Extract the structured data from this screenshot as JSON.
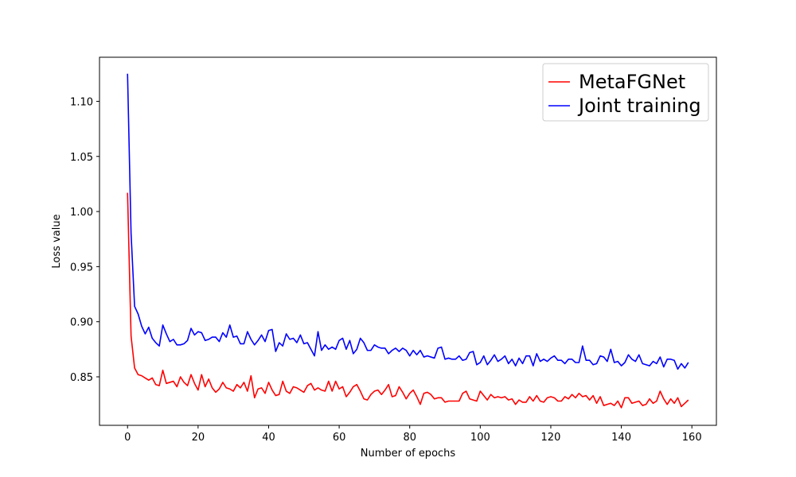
{
  "chart_data": {
    "type": "line",
    "x_label": "Number of epochs",
    "y_label": "Loss value",
    "x": [
      0,
      1,
      2,
      3,
      4,
      5,
      6,
      7,
      8,
      9,
      10,
      11,
      12,
      13,
      14,
      15,
      16,
      17,
      18,
      19,
      20,
      21,
      22,
      23,
      24,
      25,
      26,
      27,
      28,
      29,
      30,
      31,
      32,
      33,
      34,
      35,
      36,
      37,
      38,
      39,
      40,
      41,
      42,
      43,
      44,
      45,
      46,
      47,
      48,
      49,
      50,
      51,
      52,
      53,
      54,
      55,
      56,
      57,
      58,
      59,
      60,
      61,
      62,
      63,
      64,
      65,
      66,
      67,
      68,
      69,
      70,
      71,
      72,
      73,
      74,
      75,
      76,
      77,
      78,
      79,
      80,
      81,
      82,
      83,
      84,
      85,
      86,
      87,
      88,
      89,
      90,
      91,
      92,
      93,
      94,
      95,
      96,
      97,
      98,
      99,
      100,
      101,
      102,
      103,
      104,
      105,
      106,
      107,
      108,
      109,
      110,
      111,
      112,
      113,
      114,
      115,
      116,
      117,
      118,
      119,
      120,
      121,
      122,
      123,
      124,
      125,
      126,
      127,
      128,
      129,
      130,
      131,
      132,
      133,
      134,
      135,
      136,
      137,
      138,
      139,
      140,
      141,
      142,
      143,
      144,
      145,
      146,
      147,
      148,
      149,
      150,
      151,
      152,
      153,
      154,
      155,
      156,
      157,
      158,
      159
    ],
    "series": [
      {
        "name": "MetaFGNet",
        "color": "#ff0000",
        "values": [
          1.017,
          0.887,
          0.858,
          0.852,
          0.851,
          0.849,
          0.847,
          0.849,
          0.843,
          0.842,
          0.856,
          0.844,
          0.845,
          0.846,
          0.841,
          0.85,
          0.845,
          0.842,
          0.852,
          0.844,
          0.838,
          0.852,
          0.841,
          0.848,
          0.84,
          0.836,
          0.839,
          0.845,
          0.84,
          0.839,
          0.837,
          0.843,
          0.84,
          0.845,
          0.837,
          0.851,
          0.831,
          0.839,
          0.84,
          0.835,
          0.845,
          0.838,
          0.833,
          0.834,
          0.846,
          0.837,
          0.835,
          0.841,
          0.84,
          0.838,
          0.836,
          0.842,
          0.844,
          0.838,
          0.84,
          0.838,
          0.837,
          0.846,
          0.837,
          0.846,
          0.839,
          0.841,
          0.832,
          0.836,
          0.841,
          0.843,
          0.837,
          0.83,
          0.829,
          0.834,
          0.837,
          0.838,
          0.834,
          0.838,
          0.843,
          0.832,
          0.833,
          0.841,
          0.836,
          0.83,
          0.835,
          0.838,
          0.832,
          0.825,
          0.835,
          0.836,
          0.834,
          0.83,
          0.831,
          0.831,
          0.827,
          0.828,
          0.828,
          0.828,
          0.828,
          0.835,
          0.837,
          0.83,
          0.829,
          0.828,
          0.837,
          0.833,
          0.829,
          0.834,
          0.831,
          0.832,
          0.831,
          0.832,
          0.829,
          0.83,
          0.825,
          0.829,
          0.827,
          0.827,
          0.832,
          0.828,
          0.833,
          0.828,
          0.827,
          0.831,
          0.832,
          0.831,
          0.828,
          0.828,
          0.832,
          0.83,
          0.834,
          0.831,
          0.835,
          0.832,
          0.833,
          0.829,
          0.833,
          0.826,
          0.832,
          0.824,
          0.825,
          0.826,
          0.824,
          0.828,
          0.822,
          0.831,
          0.831,
          0.826,
          0.827,
          0.828,
          0.824,
          0.825,
          0.83,
          0.826,
          0.828,
          0.837,
          0.83,
          0.825,
          0.83,
          0.826,
          0.831,
          0.823,
          0.826,
          0.829
        ]
      },
      {
        "name": "Joint training",
        "color": "#0000ff",
        "values": [
          1.125,
          0.98,
          0.914,
          0.907,
          0.896,
          0.889,
          0.895,
          0.885,
          0.881,
          0.878,
          0.897,
          0.889,
          0.882,
          0.884,
          0.879,
          0.879,
          0.88,
          0.883,
          0.894,
          0.888,
          0.891,
          0.89,
          0.883,
          0.884,
          0.886,
          0.886,
          0.882,
          0.89,
          0.886,
          0.897,
          0.886,
          0.887,
          0.88,
          0.88,
          0.891,
          0.884,
          0.879,
          0.883,
          0.888,
          0.882,
          0.892,
          0.893,
          0.873,
          0.881,
          0.878,
          0.889,
          0.884,
          0.885,
          0.881,
          0.888,
          0.88,
          0.881,
          0.875,
          0.869,
          0.891,
          0.874,
          0.879,
          0.875,
          0.877,
          0.875,
          0.883,
          0.885,
          0.875,
          0.883,
          0.871,
          0.875,
          0.885,
          0.881,
          0.874,
          0.874,
          0.879,
          0.877,
          0.876,
          0.876,
          0.871,
          0.874,
          0.876,
          0.873,
          0.876,
          0.874,
          0.869,
          0.874,
          0.87,
          0.874,
          0.868,
          0.869,
          0.868,
          0.867,
          0.876,
          0.877,
          0.866,
          0.867,
          0.866,
          0.866,
          0.869,
          0.865,
          0.866,
          0.872,
          0.873,
          0.861,
          0.863,
          0.869,
          0.861,
          0.865,
          0.87,
          0.864,
          0.866,
          0.869,
          0.862,
          0.866,
          0.86,
          0.867,
          0.862,
          0.869,
          0.869,
          0.86,
          0.871,
          0.864,
          0.866,
          0.864,
          0.867,
          0.869,
          0.865,
          0.865,
          0.862,
          0.866,
          0.866,
          0.863,
          0.863,
          0.878,
          0.865,
          0.865,
          0.861,
          0.862,
          0.869,
          0.868,
          0.864,
          0.875,
          0.863,
          0.864,
          0.86,
          0.863,
          0.87,
          0.866,
          0.864,
          0.87,
          0.862,
          0.861,
          0.86,
          0.864,
          0.862,
          0.868,
          0.859,
          0.866,
          0.866,
          0.865,
          0.857,
          0.862,
          0.858,
          0.863
        ]
      }
    ],
    "xlim": [
      -7.95,
      166.95
    ],
    "xticks": [
      0,
      20,
      40,
      60,
      80,
      100,
      120,
      140,
      160
    ],
    "ylim": [
      0.806,
      1.14
    ],
    "yticks": [
      0.85,
      {
        "value": 0.9,
        "label": "0.90"
      },
      0.95,
      {
        "value": 1.0,
        "label": "1.00"
      },
      1.05,
      {
        "value": 1.1,
        "label": "1.10"
      }
    ],
    "legend": "upper right"
  }
}
